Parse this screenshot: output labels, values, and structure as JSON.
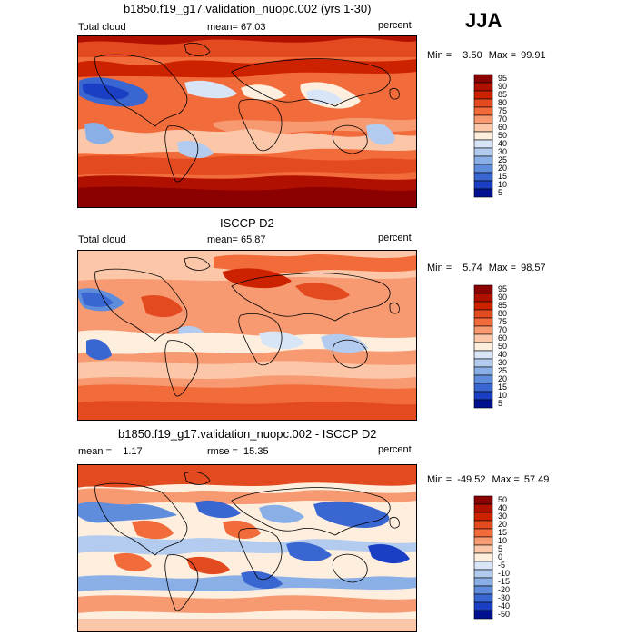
{
  "season": "JJA",
  "panels": [
    {
      "title": "b1850.f19_g17.validation_nuopc.002 (yrs 1-30)",
      "left_label": "Total cloud",
      "center_label": "mean=  67.03",
      "units": "percent",
      "min_label": "Min =",
      "min_value": "3.50",
      "max_label": "Max =",
      "max_value": "99.91",
      "levels": [
        "95",
        "90",
        "85",
        "80",
        "75",
        "70",
        "60",
        "50",
        "40",
        "30",
        "25",
        "20",
        "15",
        "10",
        "5"
      ],
      "colors": [
        "#8b0000",
        "#b01000",
        "#cc2200",
        "#e34a1f",
        "#f26b3a",
        "#f79a72",
        "#fbc7a8",
        "#fdeede",
        "#d8e5f7",
        "#b3cbef",
        "#8aaee6",
        "#5f8ddc",
        "#3a66d1",
        "#1b3fc4",
        "#00108f"
      ]
    },
    {
      "title": "ISCCP D2",
      "left_label": "Total cloud",
      "center_label": "mean=  65.87",
      "units": "percent",
      "min_label": "Min =",
      "min_value": "5.74",
      "max_label": "Max =",
      "max_value": "98.57",
      "levels": [
        "95",
        "90",
        "85",
        "80",
        "75",
        "70",
        "60",
        "50",
        "40",
        "30",
        "25",
        "20",
        "15",
        "10",
        "5"
      ],
      "colors": [
        "#8b0000",
        "#b01000",
        "#cc2200",
        "#e34a1f",
        "#f26b3a",
        "#f79a72",
        "#fbc7a8",
        "#fdeede",
        "#d8e5f7",
        "#b3cbef",
        "#8aaee6",
        "#5f8ddc",
        "#3a66d1",
        "#1b3fc4",
        "#00108f"
      ]
    },
    {
      "title": "b1850.f19_g17.validation_nuopc.002 - ISCCP D2",
      "left_label": "mean =    1.17",
      "center_label": "rmse =  15.35",
      "units": "percent",
      "min_label": "Min =",
      "min_value": "-49.52",
      "max_label": "Max =",
      "max_value": "57.49",
      "levels": [
        "50",
        "40",
        "30",
        "20",
        "15",
        "10",
        "5",
        "0",
        "-5",
        "-10",
        "-15",
        "-20",
        "-30",
        "-40",
        "-50"
      ],
      "colors": [
        "#8b0000",
        "#b01000",
        "#cc2200",
        "#e34a1f",
        "#f26b3a",
        "#f79a72",
        "#fbc7a8",
        "#fdeede",
        "#d8e5f7",
        "#b3cbef",
        "#8aaee6",
        "#5f8ddc",
        "#3a66d1",
        "#1b3fc4",
        "#00108f"
      ]
    }
  ]
}
